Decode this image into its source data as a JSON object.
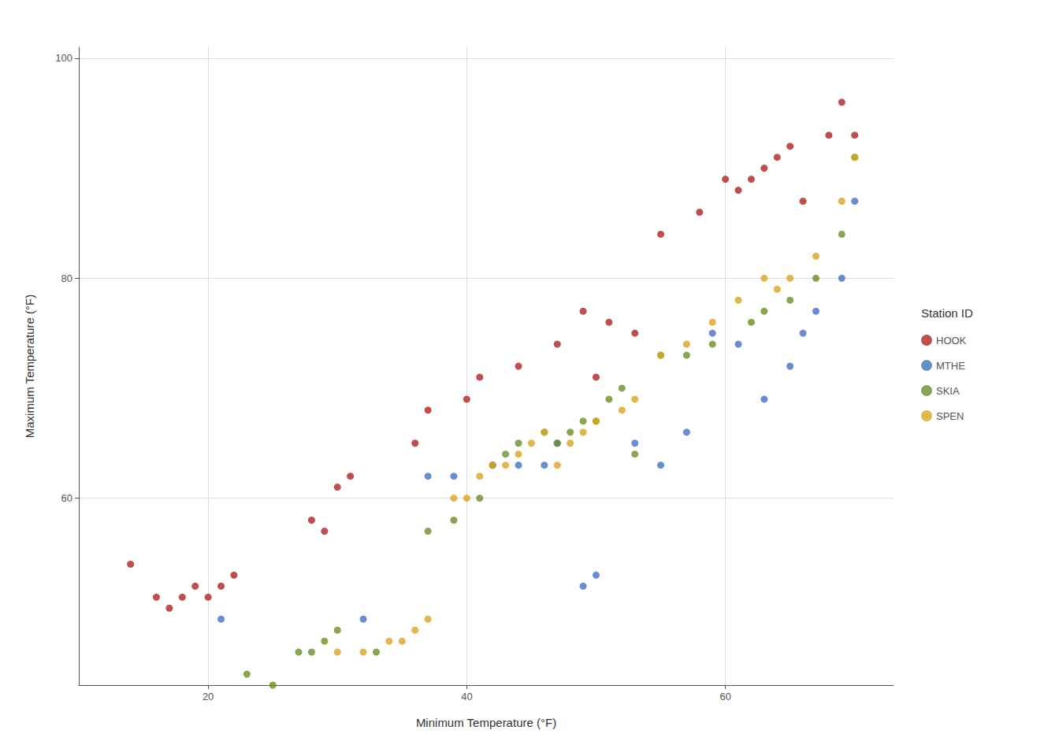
{
  "chart_data": {
    "type": "scatter",
    "xlabel": "Minimum Temperature (°F)",
    "ylabel": "Maximum Temperature (°F)",
    "legend_title": "Station ID",
    "xlim": [
      10,
      73
    ],
    "ylim": [
      43,
      101
    ],
    "xticks": [
      20,
      40,
      60
    ],
    "yticks": [
      60,
      80,
      100
    ],
    "grid": true,
    "legend": "right",
    "series": [
      {
        "name": "HOOK",
        "color": "#b22222",
        "x": [
          14,
          16,
          17,
          18,
          19,
          20,
          21,
          22,
          28,
          29,
          30,
          31,
          36,
          37,
          40,
          41,
          44,
          47,
          49,
          50,
          51,
          53,
          55,
          58,
          60,
          61,
          62,
          63,
          64,
          65,
          66,
          68,
          69,
          70
        ],
        "values": [
          54,
          51,
          50,
          51,
          52,
          51,
          52,
          53,
          58,
          57,
          61,
          62,
          65,
          68,
          69,
          71,
          72,
          74,
          77,
          71,
          76,
          75,
          84,
          86,
          89,
          88,
          89,
          90,
          91,
          92,
          87,
          93,
          96,
          93
        ]
      },
      {
        "name": "MTHE",
        "color": "#4472c4",
        "x": [
          21,
          32,
          37,
          39,
          42,
          44,
          46,
          47,
          49,
          50,
          53,
          55,
          57,
          59,
          61,
          63,
          65,
          66,
          67,
          69,
          70
        ],
        "values": [
          49,
          49,
          62,
          62,
          63,
          63,
          63,
          65,
          52,
          53,
          65,
          63,
          66,
          75,
          74,
          69,
          72,
          75,
          77,
          80,
          87
        ]
      },
      {
        "name": "SKIA",
        "color": "#6b8e23",
        "x": [
          23,
          25,
          27,
          28,
          29,
          30,
          33,
          37,
          39,
          41,
          42,
          43,
          44,
          46,
          47,
          48,
          49,
          50,
          51,
          52,
          53,
          55,
          57,
          59,
          62,
          63,
          65,
          67,
          69,
          70
        ],
        "values": [
          44,
          43,
          46,
          46,
          47,
          48,
          46,
          57,
          58,
          60,
          63,
          64,
          65,
          66,
          65,
          66,
          67,
          67,
          69,
          70,
          64,
          73,
          73,
          74,
          76,
          77,
          78,
          80,
          84,
          91
        ]
      },
      {
        "name": "SPEN",
        "color": "#daa520",
        "x": [
          30,
          32,
          34,
          35,
          36,
          37,
          39,
          40,
          41,
          42,
          43,
          44,
          45,
          46,
          47,
          48,
          49,
          50,
          52,
          53,
          55,
          57,
          59,
          61,
          63,
          64,
          65,
          67,
          69,
          70
        ],
        "values": [
          46,
          46,
          47,
          47,
          48,
          49,
          60,
          60,
          62,
          63,
          63,
          64,
          65,
          66,
          63,
          65,
          66,
          67,
          68,
          69,
          73,
          74,
          76,
          78,
          80,
          79,
          80,
          82,
          87,
          91
        ]
      }
    ]
  }
}
